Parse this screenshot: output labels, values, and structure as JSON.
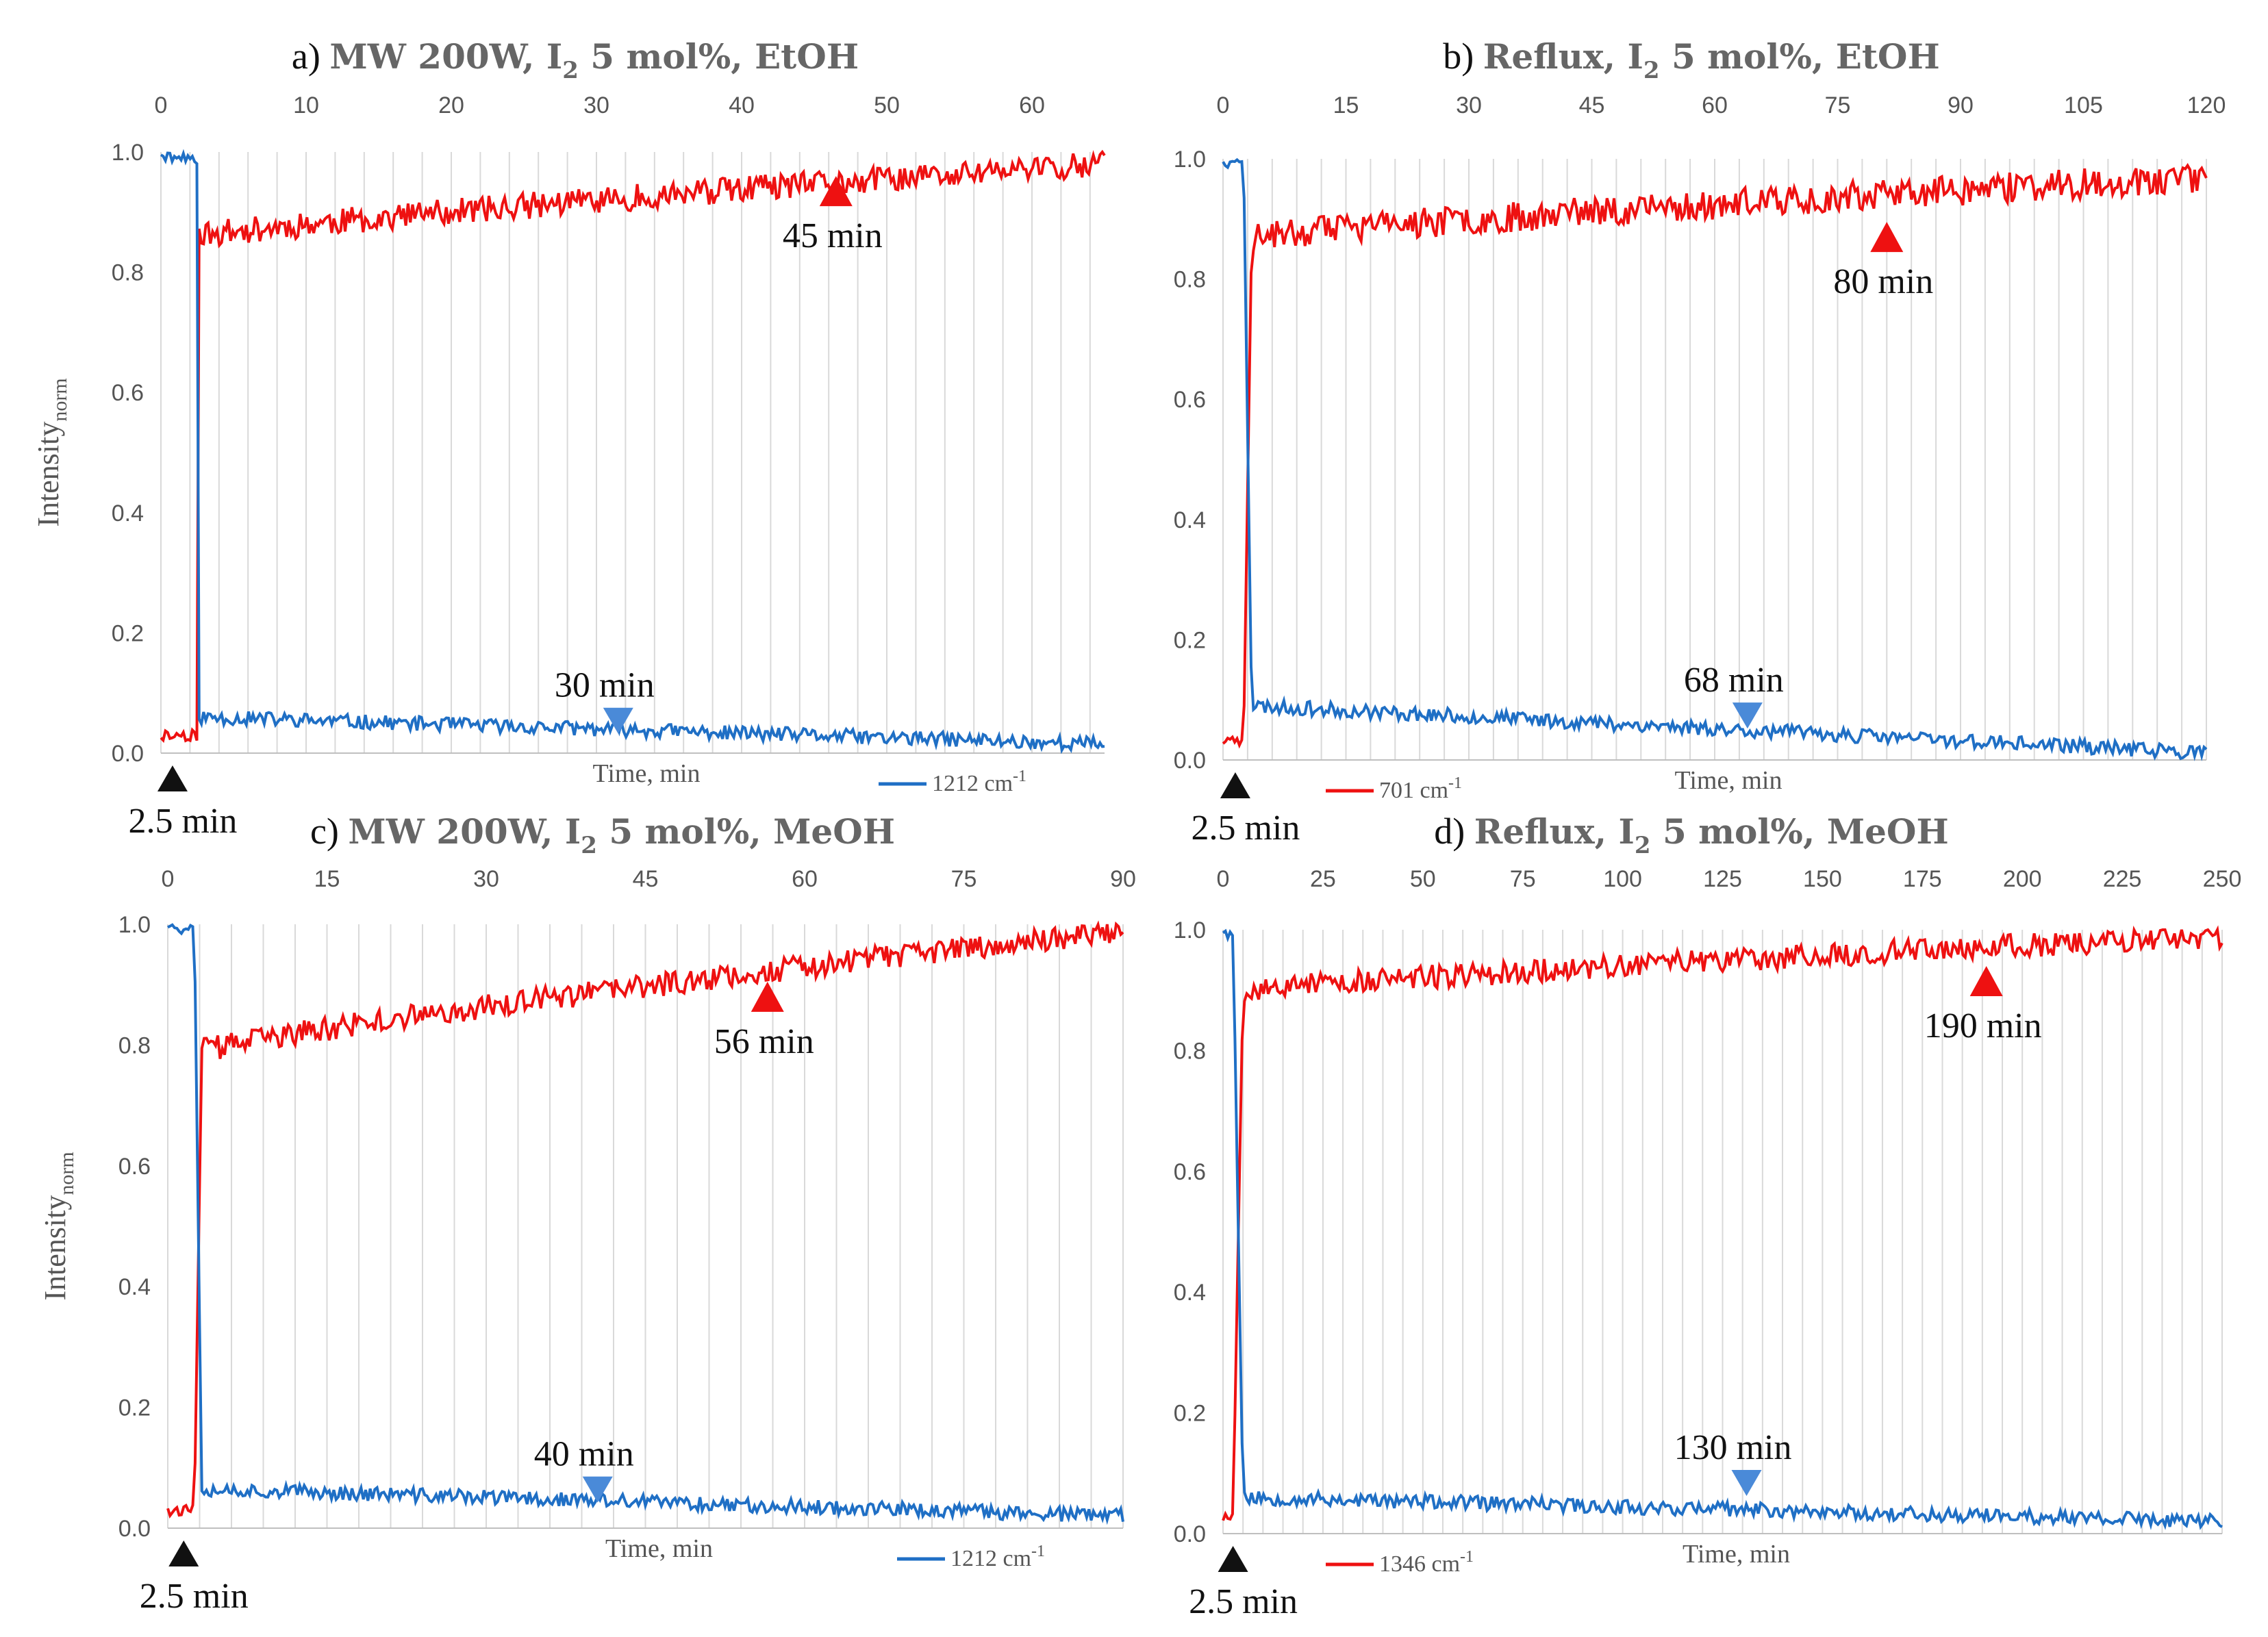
{
  "colors": {
    "series_a": "#1f6fc5",
    "series_b": "#ee1111",
    "start_marker": "#111111",
    "grid": "#d9d9d9",
    "axis_text": "#555555",
    "title_text": "#666666"
  },
  "chart_data": [
    {
      "type": "line",
      "panel": "a)",
      "title_main": "MW 200W, I",
      "title_sub": "2",
      "title_rest": " 5 mol%, EtOH",
      "xlabel": "Time, min",
      "ylabel": "Intensity",
      "ylabel_sub": "norm",
      "xlim": [
        0,
        65
      ],
      "x_ticks": [
        0,
        10,
        20,
        30,
        40,
        50,
        60
      ],
      "ylim": [
        0,
        1
      ],
      "y_ticks": [
        "0.0",
        "0.2",
        "0.4",
        "0.6",
        "0.8",
        "1.0"
      ],
      "grid": "vertical",
      "legend": "1212 cm",
      "legend_sup": "-1",
      "reactant_color": "blue",
      "product_color": "red",
      "start_time": 2.5,
      "kink": 2.6,
      "reactant_baseline": [
        0.06,
        0.015
      ],
      "product_plateau": [
        0.86,
        0.98
      ],
      "noise_reactant": 0.012,
      "noise_product": 0.022,
      "seed": 11,
      "annotations": [
        {
          "text": "2.5 min",
          "x": 0.8,
          "marker": "up",
          "color": "black",
          "where": "axis"
        },
        {
          "text": "30 min",
          "x": 31.5,
          "y": 0.055,
          "marker": "down",
          "color": "blue"
        },
        {
          "text": "45 min",
          "x": 46.5,
          "y": 0.935,
          "marker": "up",
          "color": "red"
        }
      ]
    },
    {
      "type": "line",
      "panel": "b)",
      "title_main": "Reflux, I",
      "title_sub": "2",
      "title_rest": " 5 mol%, EtOH",
      "xlabel": "Time, min",
      "ylabel": "",
      "ylabel_sub": "",
      "xlim": [
        0,
        120
      ],
      "x_ticks": [
        0,
        15,
        30,
        45,
        60,
        75,
        90,
        105,
        120
      ],
      "ylim": [
        0,
        1
      ],
      "y_ticks": [
        "0.0",
        "0.2",
        "0.4",
        "0.6",
        "0.8",
        "1.0"
      ],
      "grid": "vertical",
      "legend": "701 cm",
      "legend_sup": "-1",
      "reactant_color": "blue",
      "product_color": "red",
      "start_time": 2.5,
      "kink": 3.5,
      "reactant_baseline": [
        0.09,
        0.012
      ],
      "product_plateau": [
        0.87,
        0.97
      ],
      "noise_reactant": 0.012,
      "noise_product": 0.025,
      "seed": 23,
      "annotations": [
        {
          "text": "2.5 min",
          "x": 1.5,
          "marker": "up",
          "color": "black",
          "where": "axis"
        },
        {
          "text": "68 min",
          "x": 64,
          "y": 0.075,
          "marker": "down",
          "color": "blue"
        },
        {
          "text": "80 min",
          "x": 81,
          "y": 0.87,
          "marker": "up",
          "color": "red"
        }
      ]
    },
    {
      "type": "line",
      "panel": "c)",
      "title_main": "MW 200W, I",
      "title_sub": "2",
      "title_rest": " 5 mol%, MeOH",
      "xlabel": "Time, min",
      "ylabel": "Intensity",
      "ylabel_sub": "norm",
      "xlim": [
        0,
        90
      ],
      "x_ticks": [
        0,
        15,
        30,
        45,
        60,
        75,
        90
      ],
      "ylim": [
        0,
        1
      ],
      "y_ticks": [
        "0.0",
        "0.2",
        "0.4",
        "0.6",
        "0.8",
        "1.0"
      ],
      "grid": "vertical",
      "legend": "1212 cm",
      "legend_sup": "-1",
      "reactant_color": "blue",
      "product_color": "red",
      "start_time": 2.5,
      "kink": 3.2,
      "reactant_baseline": [
        0.065,
        0.02
      ],
      "product_plateau": [
        0.79,
        0.99
      ],
      "noise_reactant": 0.012,
      "noise_product": 0.02,
      "seed": 37,
      "annotations": [
        {
          "text": "2.5 min",
          "x": 1.5,
          "marker": "up",
          "color": "black",
          "where": "axis"
        },
        {
          "text": "40 min",
          "x": 40.5,
          "y": 0.065,
          "marker": "down",
          "color": "blue"
        },
        {
          "text": "56 min",
          "x": 56.5,
          "y": 0.88,
          "marker": "up",
          "color": "red"
        }
      ]
    },
    {
      "type": "line",
      "panel": "d)",
      "title_main": "Reflux, I",
      "title_sub": "2",
      "title_rest": " 5 mol%, MeOH",
      "xlabel": "Time, min",
      "ylabel": "",
      "ylabel_sub": "",
      "xlim": [
        0,
        250
      ],
      "x_ticks": [
        0,
        25,
        50,
        75,
        100,
        125,
        150,
        175,
        200,
        225,
        250
      ],
      "ylim": [
        0,
        1
      ],
      "y_ticks": [
        "0.0",
        "0.2",
        "0.4",
        "0.6",
        "0.8",
        "1.0"
      ],
      "grid": "vertical",
      "legend": "1346 cm",
      "legend_sup": "-1",
      "reactant_color": "blue",
      "product_color": "red",
      "start_time": 2.5,
      "kink": 5,
      "reactant_baseline": [
        0.06,
        0.02
      ],
      "product_plateau": [
        0.9,
        0.99
      ],
      "noise_reactant": 0.012,
      "noise_product": 0.02,
      "seed": 53,
      "annotations": [
        {
          "text": "2.5 min",
          "x": 2.5,
          "marker": "up",
          "color": "black",
          "where": "axis"
        },
        {
          "text": "130 min",
          "x": 131,
          "y": 0.085,
          "marker": "down",
          "color": "blue"
        },
        {
          "text": "190 min",
          "x": 191,
          "y": 0.915,
          "marker": "up",
          "color": "red"
        }
      ]
    }
  ]
}
